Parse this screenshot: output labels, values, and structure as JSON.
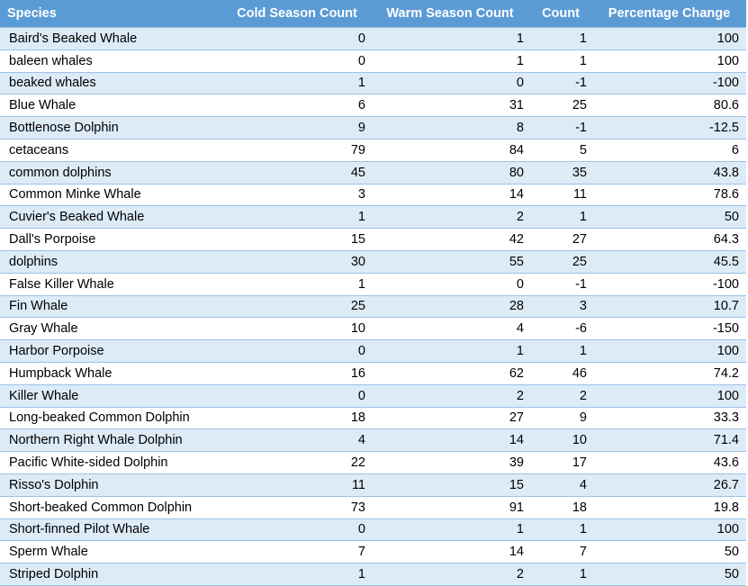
{
  "table": {
    "headers": [
      "Species",
      "Cold Season Count",
      "Warm Season Count",
      "Count",
      "Percentage Change"
    ],
    "rows": [
      [
        "Baird's Beaked Whale",
        "0",
        "1",
        "1",
        "100"
      ],
      [
        "baleen whales",
        "0",
        "1",
        "1",
        "100"
      ],
      [
        "beaked whales",
        "1",
        "0",
        "-1",
        "-100"
      ],
      [
        "Blue Whale",
        "6",
        "31",
        "25",
        "80.6"
      ],
      [
        "Bottlenose Dolphin",
        "9",
        "8",
        "-1",
        "-12.5"
      ],
      [
        "cetaceans",
        "79",
        "84",
        "5",
        "6"
      ],
      [
        "common dolphins",
        "45",
        "80",
        "35",
        "43.8"
      ],
      [
        "Common Minke Whale",
        "3",
        "14",
        "11",
        "78.6"
      ],
      [
        "Cuvier's Beaked Whale",
        "1",
        "2",
        "1",
        "50"
      ],
      [
        "Dall's Porpoise",
        "15",
        "42",
        "27",
        "64.3"
      ],
      [
        "dolphins",
        "30",
        "55",
        "25",
        "45.5"
      ],
      [
        "False Killer Whale",
        "1",
        "0",
        "-1",
        "-100"
      ],
      [
        "Fin Whale",
        "25",
        "28",
        "3",
        "10.7"
      ],
      [
        "Gray Whale",
        "10",
        "4",
        "-6",
        "-150"
      ],
      [
        "Harbor Porpoise",
        "0",
        "1",
        "1",
        "100"
      ],
      [
        "Humpback Whale",
        "16",
        "62",
        "46",
        "74.2"
      ],
      [
        "Killer Whale",
        "0",
        "2",
        "2",
        "100"
      ],
      [
        "Long-beaked Common Dolphin",
        "18",
        "27",
        "9",
        "33.3"
      ],
      [
        "Northern Right Whale Dolphin",
        "4",
        "14",
        "10",
        "71.4"
      ],
      [
        "Pacific White-sided Dolphin",
        "22",
        "39",
        "17",
        "43.6"
      ],
      [
        "Risso's Dolphin",
        "11",
        "15",
        "4",
        "26.7"
      ],
      [
        "Short-beaked Common Dolphin",
        "73",
        "91",
        "18",
        "19.8"
      ],
      [
        "Short-finned Pilot Whale",
        "0",
        "1",
        "1",
        "100"
      ],
      [
        "Sperm Whale",
        "7",
        "14",
        "7",
        "50"
      ],
      [
        "Striped Dolphin",
        "1",
        "2",
        "1",
        "50"
      ]
    ]
  },
  "colors": {
    "header_bg": "#5b9bd5",
    "header_text": "#ffffff",
    "band_row": "#ddebf7",
    "plain_row": "#ffffff",
    "row_border": "#9bc2e6"
  }
}
